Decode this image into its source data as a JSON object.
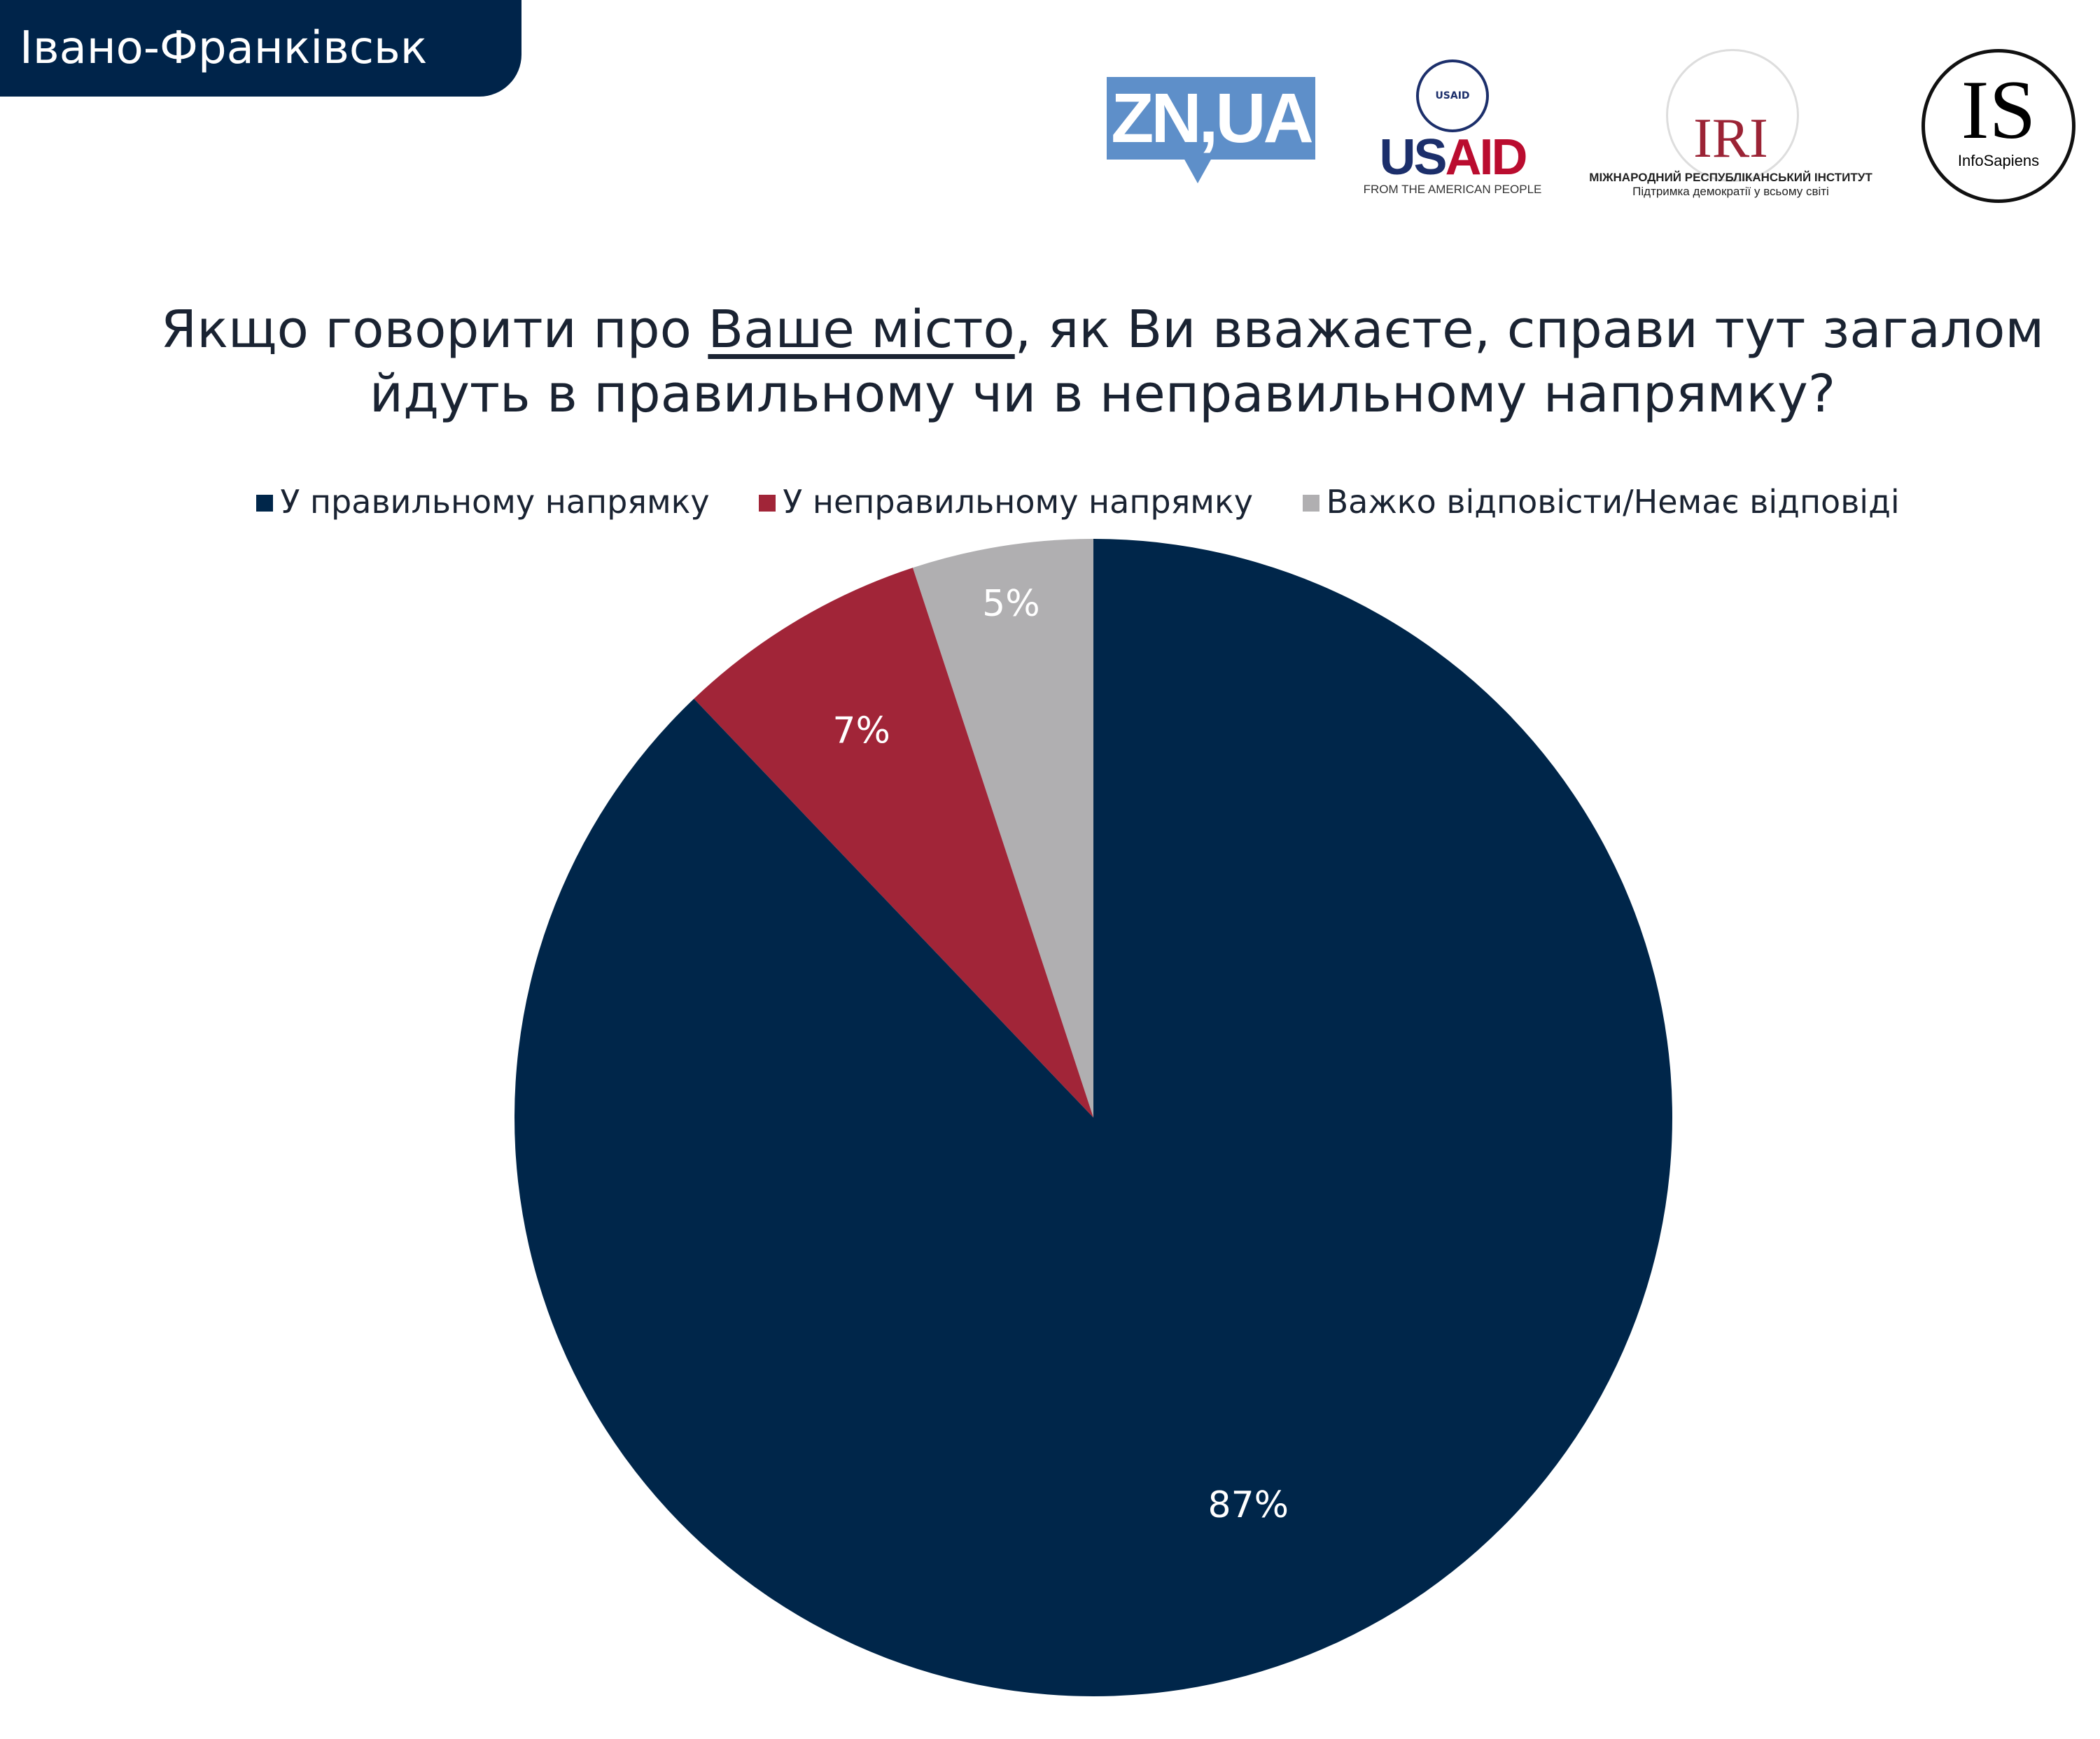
{
  "header": {
    "city": "Івано-Франківськ"
  },
  "logos": {
    "znua": "ZN,UA",
    "usaid": {
      "us": "US",
      "aid": "AID",
      "seal": "USAID",
      "tagline": "FROM THE AMERICAN PEOPLE"
    },
    "iri": {
      "name": "IRI",
      "line1": "МІЖНАРОДНИЙ РЕСПУБЛІКАНСЬКИЙ ІНСТИТУТ",
      "line2": "Підтримка демократії у всьому світі"
    },
    "infosapiens": {
      "mark": "IS",
      "name": "InfoSapiens"
    }
  },
  "chart_data": {
    "type": "pie",
    "title_before": "Якщо говорити про ",
    "title_underlined": "Ваше місто",
    "title_after": ", як Ви вважаєте, справи тут загалом",
    "title_line2": "йдуть в правильному чи в неправильному напрямку?",
    "legend_position": "top",
    "slices": [
      {
        "label": "У правильному напрямку",
        "value": 87,
        "display": "87%",
        "color": "#00264a"
      },
      {
        "label": "У неправильному напрямку",
        "value": 7,
        "display": "7%",
        "color": "#a12538"
      },
      {
        "label": "Важко відповісти/Немає відповіді",
        "value": 5,
        "display": "5%",
        "color": "#b0afb1"
      }
    ]
  }
}
